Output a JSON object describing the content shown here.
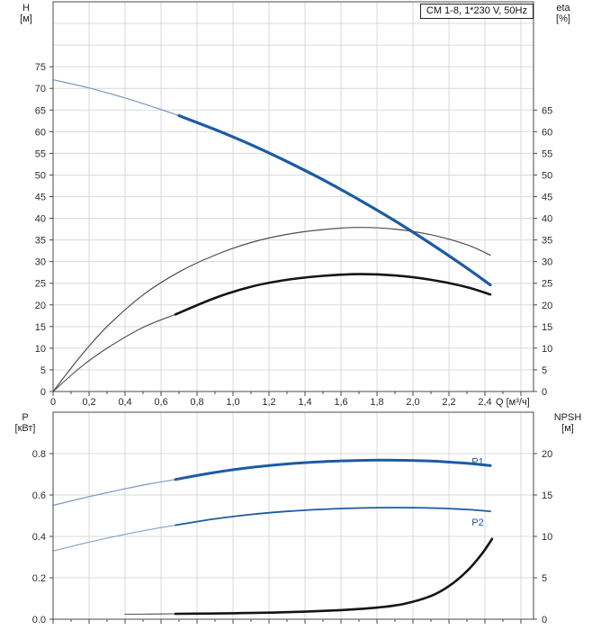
{
  "title_box": "CM 1-8, 1*230 V, 50Hz",
  "colors": {
    "blue": "#1d5ba4",
    "blue_thin": "#7b97c2",
    "black": "#141414",
    "black_thin": "#4d4d4d",
    "grid": "#d9d9d9",
    "frame": "#4a4a4a",
    "tick": "#4a4a4a",
    "text": "#2b2b2b"
  },
  "chart_data": [
    {
      "id": "head_efficiency",
      "type": "line",
      "title": "CM 1-8, 1*230 V, 50Hz",
      "x_axis": {
        "label": "Q [м³/ч]",
        "min": 0,
        "max": 2.67,
        "grid_step": 0.2,
        "major_tick_step": 0.2,
        "minor_tick_step": 0.1,
        "show_labels": true,
        "tick_values": [
          0,
          0.2,
          0.4,
          0.6,
          0.8,
          1.0,
          1.2,
          1.4,
          1.6,
          1.8,
          2.0,
          2.2,
          2.4
        ],
        "tick_labels": [
          "0",
          "0,2",
          "0,4",
          "0,6",
          "0,8",
          "1,0",
          "1,2",
          "1,4",
          "1,6",
          "1,8",
          "2,0",
          "2,2",
          "2,4"
        ]
      },
      "y_left": {
        "label": "H",
        "unit": "[м]",
        "min": 0,
        "max": 90,
        "grid_step": 5,
        "tick_values": [
          0,
          5,
          10,
          15,
          20,
          25,
          30,
          35,
          40,
          45,
          50,
          55,
          60,
          65,
          70,
          75
        ],
        "tick_labels": [
          "0",
          "5",
          "10",
          "15",
          "20",
          "25",
          "30",
          "35",
          "40",
          "45",
          "50",
          "55",
          "60",
          "65",
          "70",
          "75"
        ]
      },
      "y_right": {
        "label": "eta",
        "unit": "[%]",
        "min": 0,
        "max": 90,
        "tick_values": [
          0,
          5,
          10,
          15,
          20,
          25,
          30,
          35,
          40,
          45,
          50,
          55,
          60,
          65
        ],
        "tick_labels": [
          "0",
          "5",
          "10",
          "15",
          "20",
          "25",
          "30",
          "35",
          "40",
          "45",
          "50",
          "55",
          "60",
          "65"
        ]
      },
      "series": [
        {
          "id": "h-curve-thin",
          "axis": "left",
          "color": "blue_thin",
          "width": 1.2,
          "points": [
            [
              0,
              72
            ],
            [
              0.2,
              70.1
            ],
            [
              0.4,
              67.8
            ],
            [
              0.55,
              65.8
            ],
            [
              0.7,
              63.7
            ]
          ]
        },
        {
          "id": "h-curve",
          "axis": "left",
          "color": "blue",
          "width": 3.2,
          "points": [
            [
              0.7,
              63.7
            ],
            [
              0.9,
              60.5
            ],
            [
              1.1,
              57.0
            ],
            [
              1.3,
              53.1
            ],
            [
              1.5,
              48.9
            ],
            [
              1.7,
              44.3
            ],
            [
              1.9,
              39.4
            ],
            [
              2.1,
              34.1
            ],
            [
              2.3,
              28.5
            ],
            [
              2.43,
              24.6
            ]
          ]
        },
        {
          "id": "eta-pump-curve",
          "axis": "right",
          "color": "black_thin",
          "width": 1.2,
          "points": [
            [
              0,
              0
            ],
            [
              0.15,
              8
            ],
            [
              0.3,
              15
            ],
            [
              0.5,
              22.3
            ],
            [
              0.7,
              27.6
            ],
            [
              0.9,
              31.5
            ],
            [
              1.1,
              34.4
            ],
            [
              1.3,
              36.3
            ],
            [
              1.5,
              37.4
            ],
            [
              1.7,
              37.9
            ],
            [
              1.9,
              37.5
            ],
            [
              2.1,
              36.2
            ],
            [
              2.3,
              33.9
            ],
            [
              2.43,
              31.5
            ]
          ]
        },
        {
          "id": "eta-total-curve-thin",
          "axis": "right",
          "color": "black_thin",
          "width": 1.1,
          "points": [
            [
              0,
              0
            ],
            [
              0.15,
              5.5
            ],
            [
              0.3,
              10
            ],
            [
              0.5,
              14.8
            ],
            [
              0.68,
              17.8
            ]
          ]
        },
        {
          "id": "eta-total-curve",
          "axis": "right",
          "color": "black",
          "width": 2.6,
          "points": [
            [
              0.68,
              17.8
            ],
            [
              0.9,
              21.6
            ],
            [
              1.1,
              24.2
            ],
            [
              1.3,
              25.8
            ],
            [
              1.5,
              26.7
            ],
            [
              1.7,
              27.1
            ],
            [
              1.9,
              26.8
            ],
            [
              2.1,
              25.8
            ],
            [
              2.3,
              24.1
            ],
            [
              2.43,
              22.4
            ]
          ]
        }
      ]
    },
    {
      "id": "power_npsh",
      "type": "line",
      "x_axis": {
        "label": "",
        "min": 0,
        "max": 2.67,
        "grid_step": 0.2,
        "major_tick_step": 0.2,
        "minor_tick_step": 0.1,
        "show_labels": false,
        "tick_values": [],
        "tick_labels": []
      },
      "y_left": {
        "label": "P",
        "unit": "[кВт]",
        "min": 0,
        "max": 1.0,
        "grid_step": 0.2,
        "tick_values": [
          0,
          0.2,
          0.4,
          0.6,
          0.8
        ],
        "tick_labels": [
          "0.0",
          "0.2",
          "0.4",
          "0.6",
          "0.8"
        ]
      },
      "y_right": {
        "label": "NPSH",
        "unit": "[м]",
        "min": 0,
        "max": 25,
        "tick_values": [
          0,
          5,
          10,
          15,
          20
        ],
        "tick_labels": [
          "0",
          "5",
          "10",
          "15",
          "20"
        ]
      },
      "series": [
        {
          "id": "p1-curve-thin",
          "axis": "left",
          "color": "blue_thin",
          "width": 1.2,
          "points": [
            [
              0,
              0.55
            ],
            [
              0.2,
              0.592
            ],
            [
              0.4,
              0.63
            ],
            [
              0.55,
              0.656
            ],
            [
              0.68,
              0.675
            ]
          ]
        },
        {
          "id": "p1-curve",
          "axis": "left",
          "color": "blue",
          "width": 3,
          "label": "P1",
          "label_q": 2.36,
          "label_v": 0.745,
          "points": [
            [
              0.68,
              0.675
            ],
            [
              0.9,
              0.709
            ],
            [
              1.1,
              0.733
            ],
            [
              1.3,
              0.75
            ],
            [
              1.5,
              0.761
            ],
            [
              1.7,
              0.767
            ],
            [
              1.9,
              0.768
            ],
            [
              2.1,
              0.764
            ],
            [
              2.3,
              0.753
            ],
            [
              2.43,
              0.742
            ]
          ]
        },
        {
          "id": "p2-curve-thin",
          "axis": "left",
          "color": "blue_thin",
          "width": 1,
          "points": [
            [
              0,
              0.33
            ],
            [
              0.2,
              0.372
            ],
            [
              0.4,
              0.41
            ],
            [
              0.55,
              0.435
            ],
            [
              0.68,
              0.454
            ]
          ]
        },
        {
          "id": "p2-curve",
          "axis": "left",
          "color": "blue",
          "width": 1.8,
          "label": "P2",
          "label_q": 2.36,
          "label_v": 0.452,
          "points": [
            [
              0.68,
              0.454
            ],
            [
              0.9,
              0.485
            ],
            [
              1.1,
              0.506
            ],
            [
              1.3,
              0.521
            ],
            [
              1.5,
              0.531
            ],
            [
              1.7,
              0.537
            ],
            [
              1.9,
              0.539
            ],
            [
              2.1,
              0.537
            ],
            [
              2.3,
              0.53
            ],
            [
              2.43,
              0.521
            ]
          ]
        },
        {
          "id": "npsh-curve-thin",
          "axis": "right",
          "color": "black_thin",
          "width": 1.1,
          "points": [
            [
              0.4,
              0.6
            ],
            [
              0.55,
              0.62
            ],
            [
              0.68,
              0.65
            ]
          ]
        },
        {
          "id": "npsh-curve",
          "axis": "right",
          "color": "black",
          "width": 2.6,
          "points": [
            [
              0.68,
              0.65
            ],
            [
              1.0,
              0.72
            ],
            [
              1.3,
              0.85
            ],
            [
              1.6,
              1.1
            ],
            [
              1.8,
              1.4
            ],
            [
              1.95,
              1.85
            ],
            [
              2.1,
              2.8
            ],
            [
              2.2,
              4.0
            ],
            [
              2.3,
              5.8
            ],
            [
              2.38,
              7.8
            ],
            [
              2.44,
              9.7
            ]
          ]
        }
      ]
    }
  ]
}
